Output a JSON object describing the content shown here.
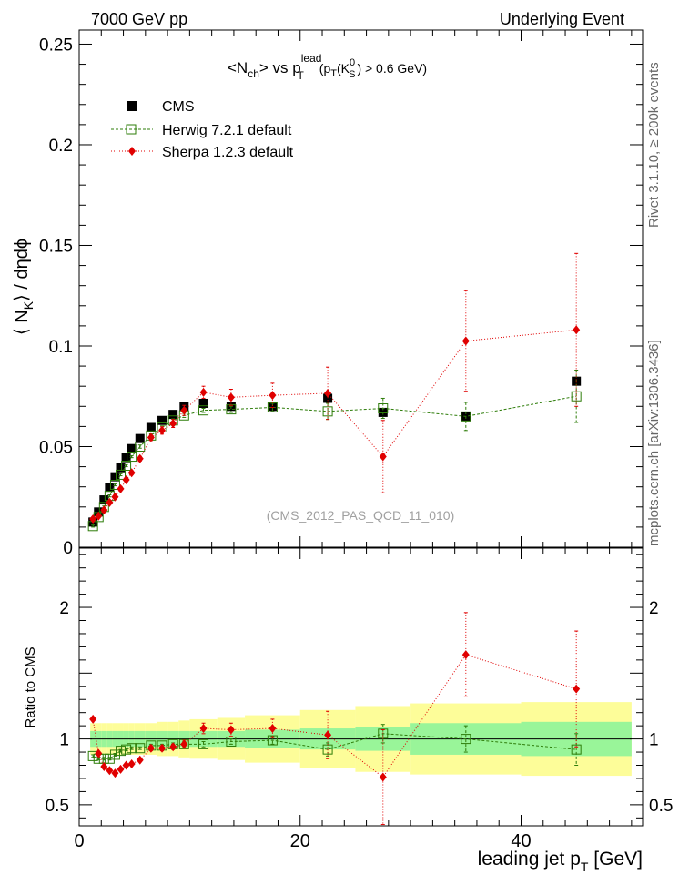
{
  "header": {
    "energy_label": "7000 GeV pp",
    "process_label": "Underlying Event",
    "side_rivet": "Rivet 3.1.10, ≥ 200k events",
    "side_mcplots": "mcplots.cern.ch [arXiv:1306.3436]"
  },
  "title": {
    "part1": "<N",
    "sub_ch": "ch",
    "part2": "> vs p",
    "sup_lead": "lead",
    "sub_T1": "T",
    "part3": "(p",
    "sub_T2": "T",
    "part4": "(K",
    "sup_zero": "0",
    "sub_S": "S",
    "part5": ") > 0.6 GeV)"
  },
  "watermark": "(CMS_2012_PAS_QCD_11_010)",
  "legend": {
    "cms": "CMS",
    "herwig": "Herwig 7.2.1 default",
    "sherpa": "Sherpa 1.2.3 default"
  },
  "colors": {
    "cms": "#000000",
    "herwig": "#2e7d0a",
    "sherpa": "#e00000",
    "band_inner": "#99f599",
    "band_outer": "#fdfd99"
  },
  "chart_data": {
    "type": "scatter",
    "main": {
      "ylabel_parts": [
        "⟨ N",
        "K",
        "⟩ / dηdϕ"
      ],
      "xlim": [
        0,
        51
      ],
      "ylim": [
        0,
        0.257
      ],
      "y_ticks": [
        {
          "v": 0,
          "label": "0"
        },
        {
          "v": 0.05,
          "label": "0.05"
        },
        {
          "v": 0.1,
          "label": "0.1"
        },
        {
          "v": 0.15,
          "label": "0.15"
        },
        {
          "v": 0.2,
          "label": "0.2"
        },
        {
          "v": 0.25,
          "label": "0.25"
        }
      ]
    },
    "ratio": {
      "ylabel": "Ratio to CMS",
      "ylim": [
        0.34,
        2.45
      ],
      "y_ticks": [
        {
          "v": 0.5,
          "label": "0.5"
        },
        {
          "v": 1,
          "label": "1"
        },
        {
          "v": 2,
          "label": "2"
        }
      ]
    },
    "xlabel_parts": [
      "leading jet p",
      "T",
      " [GeV]"
    ],
    "x_ticks": [
      {
        "v": 0,
        "label": "0"
      },
      {
        "v": 20,
        "label": "20"
      },
      {
        "v": 40,
        "label": "40"
      }
    ],
    "cms": {
      "x": [
        1.25,
        1.75,
        2.25,
        2.75,
        3.25,
        3.75,
        4.25,
        4.75,
        5.5,
        6.5,
        7.5,
        8.5,
        9.5,
        11.25,
        13.75,
        17.5,
        22.5,
        27.5,
        35,
        45
      ],
      "y": [
        0.0125,
        0.0175,
        0.0235,
        0.0298,
        0.035,
        0.0395,
        0.0445,
        0.049,
        0.054,
        0.0595,
        0.063,
        0.066,
        0.07,
        0.0715,
        0.07,
        0.07,
        0.074,
        0.067,
        0.065,
        0.0825
      ],
      "xlow": [
        1.0,
        1.5,
        2.0,
        2.5,
        3.0,
        3.5,
        4.0,
        4.5,
        5.0,
        6.0,
        7.0,
        8.0,
        9.0,
        10.0,
        12.5,
        15.0,
        20.0,
        25.0,
        30.0,
        40.0
      ],
      "xhigh": [
        1.5,
        2.0,
        2.5,
        3.0,
        3.5,
        4.0,
        4.5,
        5.0,
        6.0,
        7.0,
        8.0,
        9.0,
        10.0,
        12.5,
        15.0,
        20.0,
        25.0,
        30.0,
        40.0,
        50.0
      ],
      "err_inner": [
        0.06,
        0.06,
        0.06,
        0.06,
        0.06,
        0.06,
        0.06,
        0.06,
        0.06,
        0.06,
        0.06,
        0.06,
        0.06,
        0.06,
        0.06,
        0.07,
        0.08,
        0.09,
        0.12,
        0.13
      ],
      "err_outer": [
        0.12,
        0.12,
        0.12,
        0.12,
        0.12,
        0.12,
        0.12,
        0.12,
        0.12,
        0.12,
        0.13,
        0.13,
        0.14,
        0.15,
        0.16,
        0.18,
        0.22,
        0.25,
        0.27,
        0.28
      ]
    },
    "series": [
      {
        "name": "Herwig 7.2.1 default",
        "key": "herwig",
        "x": [
          1.25,
          1.75,
          2.25,
          2.75,
          3.25,
          3.75,
          4.25,
          4.75,
          5.5,
          6.5,
          7.5,
          8.5,
          9.5,
          11.25,
          13.75,
          17.5,
          22.5,
          27.5,
          35,
          45
        ],
        "y": [
          0.0105,
          0.015,
          0.02,
          0.0255,
          0.031,
          0.036,
          0.0405,
          0.045,
          0.05,
          0.0555,
          0.0595,
          0.063,
          0.0655,
          0.068,
          0.0685,
          0.0695,
          0.0675,
          0.069,
          0.065,
          0.075
        ],
        "yerr": [
          0.0005,
          0.0005,
          0.0005,
          0.0005,
          0.0005,
          0.0005,
          0.0005,
          0.0005,
          0.0008,
          0.0008,
          0.0008,
          0.0008,
          0.001,
          0.001,
          0.0015,
          0.002,
          0.004,
          0.005,
          0.007,
          0.013
        ],
        "ratio": [
          0.87,
          0.85,
          0.85,
          0.85,
          0.88,
          0.91,
          0.92,
          0.93,
          0.93,
          0.95,
          0.95,
          0.96,
          0.96,
          0.96,
          0.98,
          0.99,
          0.92,
          1.04,
          1.0,
          0.92
        ],
        "ratio_err": [
          0.01,
          0.01,
          0.01,
          0.01,
          0.01,
          0.01,
          0.01,
          0.01,
          0.01,
          0.01,
          0.01,
          0.01,
          0.02,
          0.02,
          0.02,
          0.03,
          0.05,
          0.07,
          0.1,
          0.12
        ]
      },
      {
        "name": "Sherpa 1.2.3 default",
        "key": "sherpa",
        "x": [
          1.25,
          1.75,
          2.25,
          2.75,
          3.25,
          3.75,
          4.25,
          4.75,
          5.5,
          6.5,
          7.5,
          8.5,
          9.5,
          11.25,
          13.75,
          17.5,
          22.5,
          27.5,
          35,
          45
        ],
        "y": [
          0.014,
          0.0155,
          0.0185,
          0.0222,
          0.025,
          0.029,
          0.0335,
          0.037,
          0.044,
          0.0545,
          0.058,
          0.0615,
          0.068,
          0.077,
          0.0745,
          0.0755,
          0.0765,
          0.045,
          0.1025,
          0.108
        ],
        "yerr": [
          0.0005,
          0.0006,
          0.0007,
          0.0008,
          0.0008,
          0.0009,
          0.001,
          0.001,
          0.0012,
          0.0015,
          0.0018,
          0.002,
          0.0025,
          0.003,
          0.004,
          0.006,
          0.013,
          0.018,
          0.025,
          0.038
        ],
        "ratio": [
          1.15,
          0.89,
          0.79,
          0.76,
          0.74,
          0.77,
          0.8,
          0.81,
          0.84,
          0.93,
          0.93,
          0.94,
          0.96,
          1.08,
          1.07,
          1.08,
          1.03,
          0.71,
          1.64,
          1.38
        ],
        "ratio_err": [
          0.01,
          0.01,
          0.01,
          0.01,
          0.01,
          0.01,
          0.01,
          0.01,
          0.01,
          0.02,
          0.02,
          0.02,
          0.03,
          0.04,
          0.05,
          0.07,
          0.18,
          0.36,
          0.32,
          0.44
        ]
      }
    ]
  }
}
